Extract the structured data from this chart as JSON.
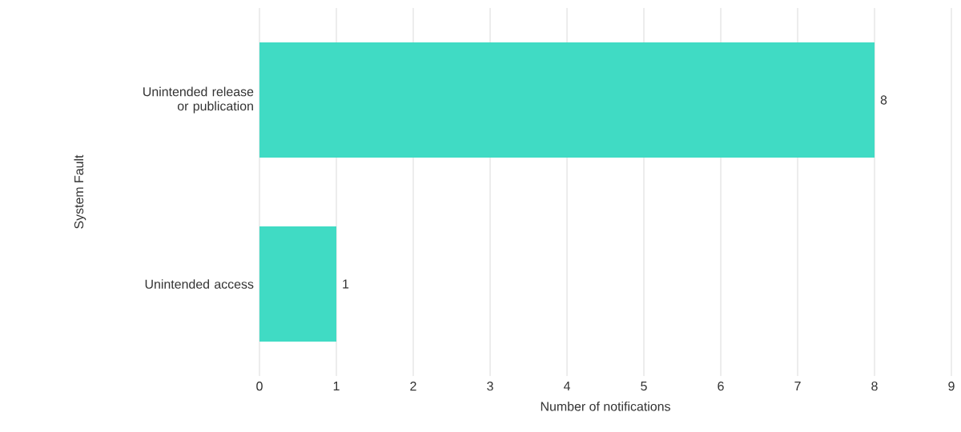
{
  "chart_data": {
    "type": "bar",
    "orientation": "horizontal",
    "categories": [
      "Unintended release or publication",
      "Unintended access"
    ],
    "values": [
      8,
      1
    ],
    "color": "#40dbc4",
    "xlim": [
      0,
      9
    ],
    "xticks": [
      0,
      1,
      2,
      3,
      4,
      5,
      6,
      7,
      8,
      9
    ],
    "xlabel": "Number of notifications",
    "ylabel": "System Fault",
    "grid": "x",
    "data_labels": true
  }
}
